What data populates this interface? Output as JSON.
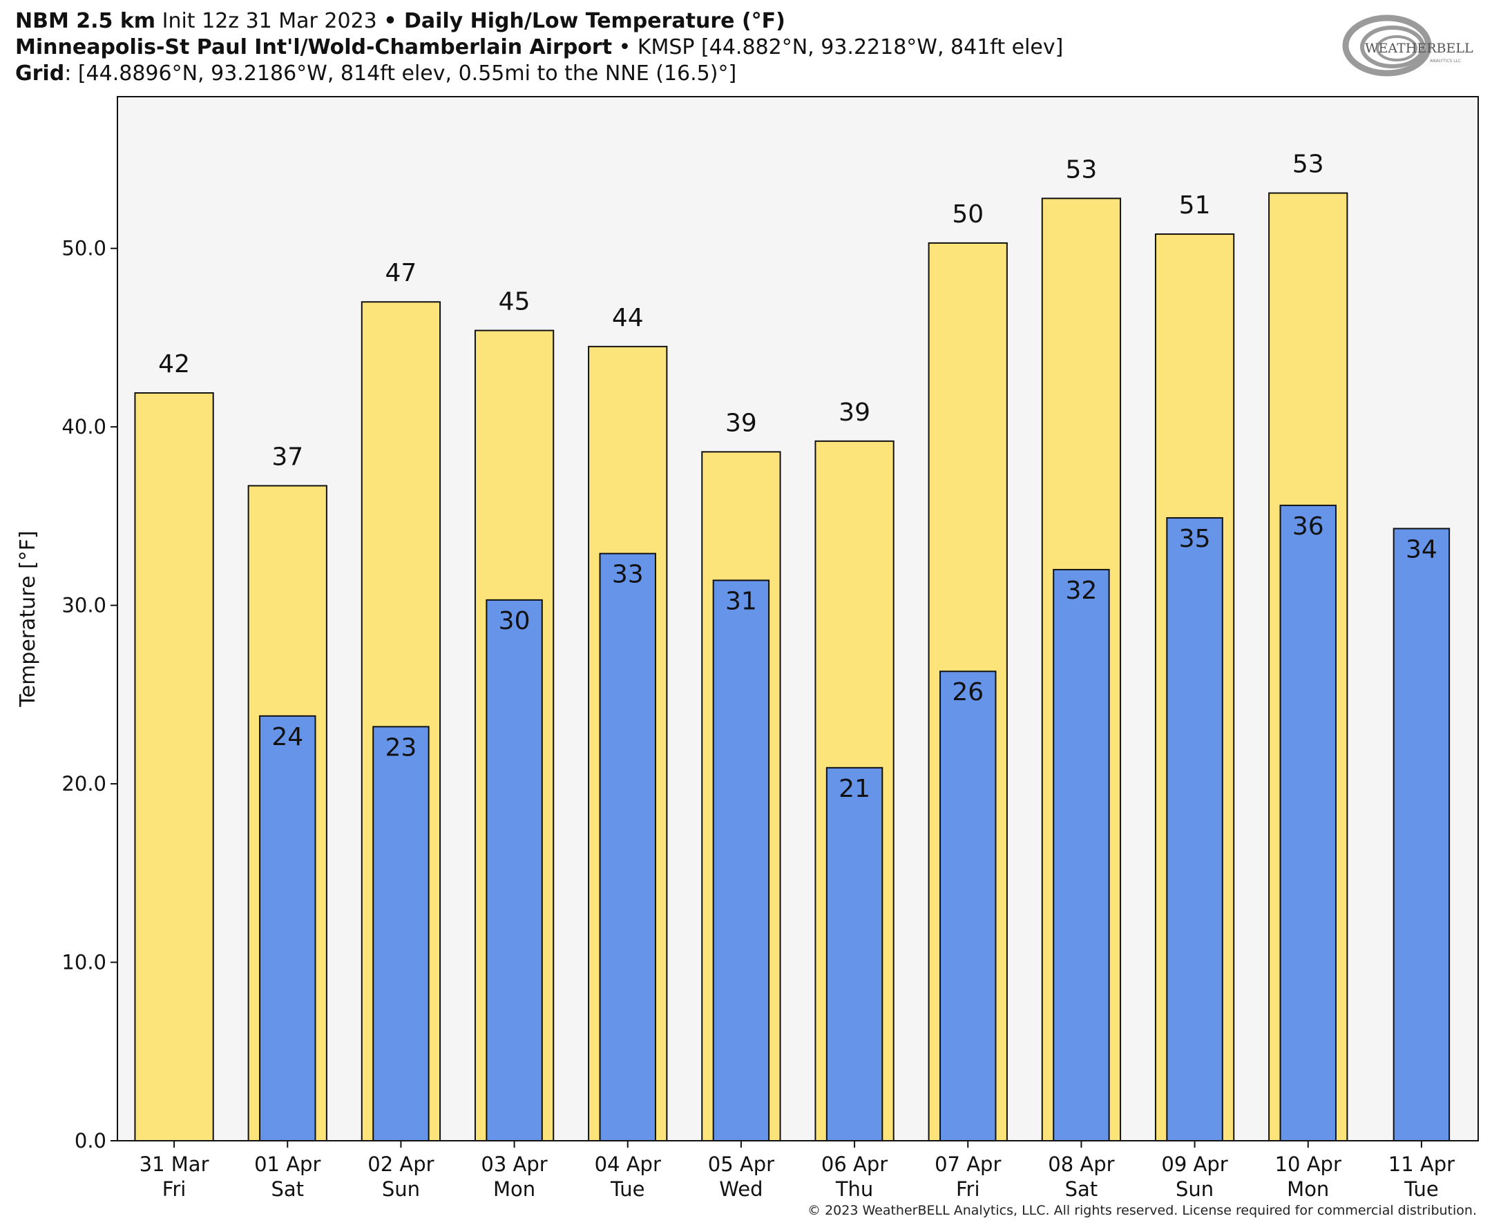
{
  "header": {
    "line1": {
      "model": "NBM 2.5 km",
      "init": " Init 12z 31 Mar 2023 ",
      "bullet": "•",
      "product": " Daily High/Low Temperature (°F)"
    },
    "line2": {
      "station": "Minneapolis-St Paul Int'l/Wold-Chamberlain Airport",
      "details": " • KMSP [44.882°N, 93.2218°W, 841ft elev]"
    },
    "line3": {
      "label": "Grid",
      "details": ": [44.8896°N, 93.2186°W, 814ft elev, 0.55mi to the NNE (16.5)°]"
    }
  },
  "logo": {
    "text1": "WEATHERBELL",
    "text2": "ANALYTICS LLC"
  },
  "copyright": "© 2023 WeatherBELL Analytics, LLC. All rights reserved. License required for commercial distribution.",
  "colors": {
    "high": "#fce37a",
    "low": "#6594e9",
    "plot_bg": "#f5f5f5",
    "edge": "#111111"
  },
  "chart_data": {
    "type": "bar",
    "ylabel": "Temperature [°F]",
    "ylim": [
      0,
      58.5
    ],
    "yticks": [
      "0.0",
      "10.0",
      "20.0",
      "30.0",
      "40.0",
      "50.0"
    ],
    "categories": [
      [
        "31 Mar",
        "Fri"
      ],
      [
        "01 Apr",
        "Sat"
      ],
      [
        "02 Apr",
        "Sun"
      ],
      [
        "03 Apr",
        "Mon"
      ],
      [
        "04 Apr",
        "Tue"
      ],
      [
        "05 Apr",
        "Wed"
      ],
      [
        "06 Apr",
        "Thu"
      ],
      [
        "07 Apr",
        "Fri"
      ],
      [
        "08 Apr",
        "Sat"
      ],
      [
        "09 Apr",
        "Sun"
      ],
      [
        "10 Apr",
        "Mon"
      ],
      [
        "11 Apr",
        "Tue"
      ]
    ],
    "series": [
      {
        "values": [
          41.9,
          36.7,
          47.0,
          45.4,
          44.5,
          38.6,
          39.2,
          50.3,
          52.8,
          50.8,
          53.1,
          null
        ],
        "labels": [
          "42",
          "37",
          "47",
          "45",
          "44",
          "39",
          "39",
          "50",
          "53",
          "51",
          "53",
          ""
        ]
      },
      {
        "values": [
          null,
          23.8,
          23.2,
          30.3,
          32.9,
          31.4,
          20.9,
          26.3,
          32.0,
          34.9,
          35.6,
          34.3
        ],
        "labels": [
          "",
          "24",
          "23",
          "30",
          "33",
          "31",
          "21",
          "26",
          "32",
          "35",
          "36",
          "34"
        ]
      }
    ],
    "grid": false,
    "legend": "none"
  }
}
